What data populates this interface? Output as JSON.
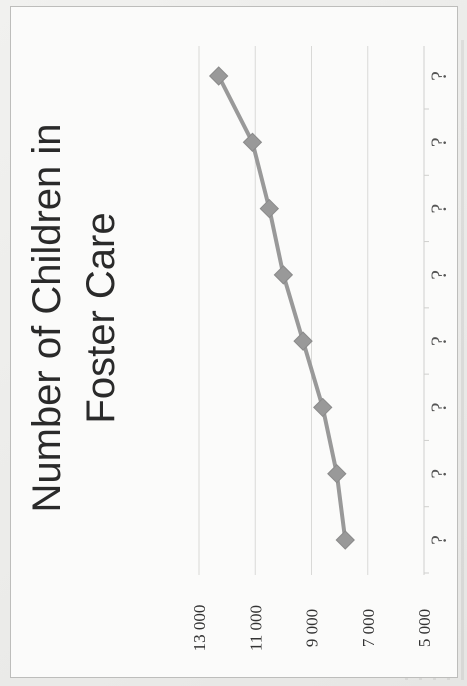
{
  "chart_data": {
    "type": "line",
    "title": "Number of Children in Foster Care",
    "title_lines": [
      "Number of Children in",
      "Foster Care"
    ],
    "orientation": "rotated-90",
    "categories": [
      "?",
      "?",
      "?",
      "?",
      "?",
      "?",
      "?",
      "?"
    ],
    "series": [
      {
        "values": [
          7800,
          8100,
          8600,
          9300,
          10000,
          10500,
          11100,
          12300
        ],
        "color": "#999999",
        "marker": "diamond"
      }
    ],
    "y_ticks": [
      "5 000",
      "7 000",
      "9 000",
      "11 000",
      "13 000"
    ],
    "ylim": [
      5000,
      13000
    ],
    "grid": true,
    "legend": "none"
  }
}
